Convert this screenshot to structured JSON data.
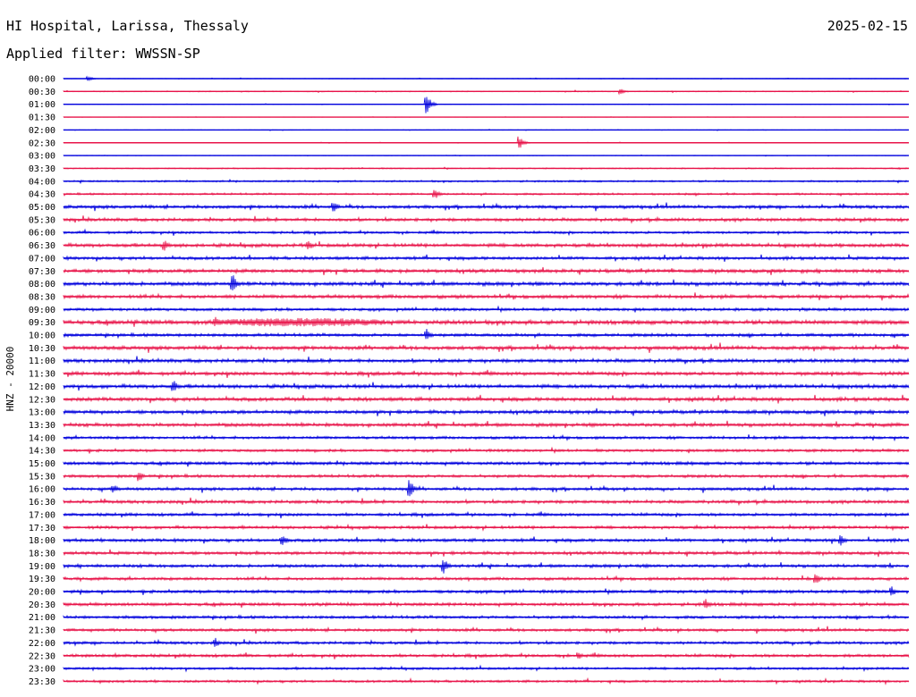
{
  "header": {
    "station": "HI Hospital, Larissa, Thessaly",
    "date": "2025-02-15",
    "filter_text": "Applied filter: WWSSN-SP"
  },
  "chart_data": {
    "type": "line",
    "ylabel": "HNZ - 20000",
    "row_labels": [
      "00:00",
      "00:30",
      "01:00",
      "01:30",
      "02:00",
      "02:30",
      "03:00",
      "03:30",
      "04:00",
      "04:30",
      "05:00",
      "05:30",
      "06:00",
      "06:30",
      "07:00",
      "07:30",
      "08:00",
      "08:30",
      "09:00",
      "09:30",
      "10:00",
      "10:30",
      "11:00",
      "11:30",
      "12:00",
      "12:30",
      "13:00",
      "13:30",
      "14:00",
      "14:30",
      "15:00",
      "15:30",
      "16:00",
      "16:30",
      "17:00",
      "17:30",
      "18:00",
      "18:30",
      "19:00",
      "19:30",
      "20:00",
      "20:30",
      "21:00",
      "21:30",
      "22:00",
      "22:30",
      "23:00",
      "23:30"
    ],
    "trace_colors": [
      "#0000dd",
      "#e8154a"
    ],
    "noise_level": [
      0.3,
      0.5,
      0.3,
      0.2,
      0.3,
      0.3,
      0.3,
      0.6,
      0.9,
      1.0,
      1.6,
      1.6,
      1.3,
      1.8,
      1.6,
      1.8,
      1.9,
      1.8,
      1.5,
      2.2,
      1.6,
      1.9,
      1.8,
      1.8,
      1.9,
      1.9,
      1.8,
      1.8,
      1.4,
      1.4,
      1.6,
      1.5,
      1.5,
      1.6,
      1.5,
      1.5,
      1.6,
      1.6,
      1.6,
      1.5,
      1.6,
      1.6,
      1.5,
      1.4,
      1.4,
      1.5,
      1.2,
      1.2
    ],
    "events": [
      {
        "row": 0,
        "x": 0.03,
        "amp": 3
      },
      {
        "row": 1,
        "x": 0.66,
        "amp": 3
      },
      {
        "row": 2,
        "x": 0.43,
        "amp": 12
      },
      {
        "row": 5,
        "x": 0.54,
        "amp": 7
      },
      {
        "row": 9,
        "x": 0.44,
        "amp": 6
      },
      {
        "row": 10,
        "x": 0.32,
        "amp": 7
      },
      {
        "row": 13,
        "x": 0.12,
        "amp": 6
      },
      {
        "row": 13,
        "x": 0.29,
        "amp": 6
      },
      {
        "row": 16,
        "x": 0.2,
        "amp": 12
      },
      {
        "row": 19,
        "x": 0.18,
        "amp": 6
      },
      {
        "row": 19,
        "x": 0.18,
        "amp": 5,
        "width": 0.2
      },
      {
        "row": 20,
        "x": 0.43,
        "amp": 7
      },
      {
        "row": 24,
        "x": 0.13,
        "amp": 8
      },
      {
        "row": 31,
        "x": 0.09,
        "amp": 6
      },
      {
        "row": 32,
        "x": 0.41,
        "amp": 10
      },
      {
        "row": 32,
        "x": 0.06,
        "amp": 5
      },
      {
        "row": 36,
        "x": 0.26,
        "amp": 6
      },
      {
        "row": 36,
        "x": 0.92,
        "amp": 7
      },
      {
        "row": 38,
        "x": 0.45,
        "amp": 9
      },
      {
        "row": 39,
        "x": 0.89,
        "amp": 8
      },
      {
        "row": 40,
        "x": 0.98,
        "amp": 6
      },
      {
        "row": 41,
        "x": 0.76,
        "amp": 6
      },
      {
        "row": 44,
        "x": 0.18,
        "amp": 6
      },
      {
        "row": 45,
        "x": 0.61,
        "amp": 5
      }
    ]
  }
}
